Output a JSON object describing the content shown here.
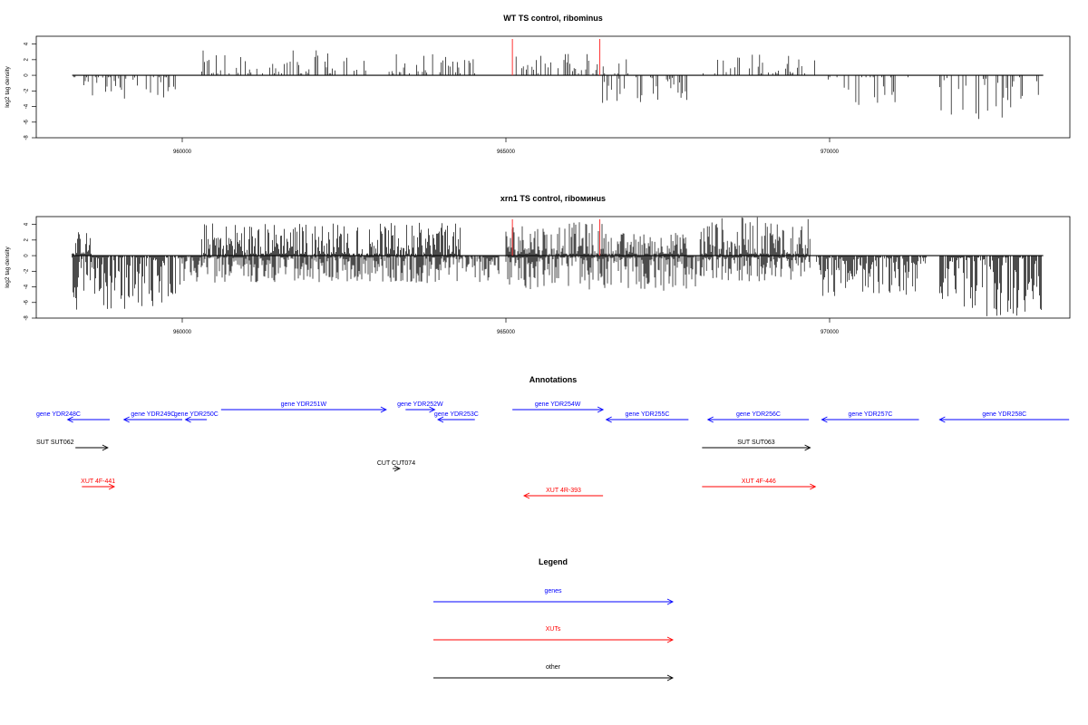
{
  "chart_data": [
    {
      "type": "bar",
      "title": "WT TS control, ribominus",
      "ylabel": "log2 tag density",
      "xlabel": "",
      "xlim": [
        958300,
        973300
      ],
      "ylim": [
        -8,
        5
      ],
      "x_ticks": [
        "960000",
        "965000",
        "970000"
      ],
      "y_ticks": [
        "4",
        "2",
        "0",
        "-2",
        "-4",
        "-6",
        "-8"
      ],
      "grid": false,
      "highlight_positions": [
        965100,
        966450
      ],
      "highlight_color": "#ff3333",
      "bar_color": "#000000",
      "forward_strand_regions": [
        {
          "start": 960300,
          "end": 962850,
          "max": 3.2
        },
        {
          "start": 963150,
          "end": 964550,
          "max": 2.8
        },
        {
          "start": 965000,
          "end": 966900,
          "max": 2.8
        },
        {
          "start": 968000,
          "end": 969800,
          "max": 2.8
        }
      ],
      "reverse_strand_regions": [
        {
          "start": 958300,
          "end": 959900,
          "max": 3.0
        },
        {
          "start": 966450,
          "end": 967800,
          "max": 3.8
        },
        {
          "start": 969800,
          "end": 971300,
          "max": 4.2
        },
        {
          "start": 971700,
          "end": 973300,
          "max": 5.8
        }
      ]
    },
    {
      "type": "bar",
      "title": "xrn1 TS control, riboминus",
      "ylabel": "log2 tag density",
      "xlabel": "",
      "xlim": [
        958300,
        973300
      ],
      "ylim": [
        -8,
        5
      ],
      "x_ticks": [
        "960000",
        "965000",
        "970000"
      ],
      "y_ticks": [
        "4",
        "2",
        "0",
        "-2",
        "-4",
        "-6",
        "-8"
      ],
      "grid": false,
      "highlight_positions": [
        965100,
        966450
      ],
      "highlight_color": "#ff3333",
      "bar_color": "#000000",
      "forward_strand_regions": [
        {
          "start": 958300,
          "end": 958600,
          "max": 3.2
        },
        {
          "start": 960300,
          "end": 962800,
          "max": 4.3
        },
        {
          "start": 962850,
          "end": 964300,
          "max": 4.2
        },
        {
          "start": 965000,
          "end": 966500,
          "max": 4.3
        },
        {
          "start": 966500,
          "end": 967800,
          "max": 3.0
        },
        {
          "start": 968000,
          "end": 969700,
          "max": 5.0
        }
      ],
      "reverse_strand_regions": [
        {
          "start": 958300,
          "end": 960000,
          "max": 7.0
        },
        {
          "start": 960000,
          "end": 962900,
          "max": 3.5
        },
        {
          "start": 962900,
          "end": 964900,
          "max": 3.5
        },
        {
          "start": 965000,
          "end": 968000,
          "max": 4.5
        },
        {
          "start": 968000,
          "end": 969700,
          "max": 3.3
        },
        {
          "start": 969800,
          "end": 971500,
          "max": 5.2
        },
        {
          "start": 971700,
          "end": 973300,
          "max": 7.8
        }
      ]
    }
  ],
  "annotations": {
    "title": "Annotations",
    "features": [
      {
        "label": "gene YDR248C",
        "start": 958230,
        "end": 958880,
        "strand": "-",
        "type": "gene",
        "row": 1
      },
      {
        "label": "gene YDR249C",
        "start": 959100,
        "end": 960000,
        "strand": "-",
        "type": "gene",
        "row": 1
      },
      {
        "label": "gene YDR250C",
        "start": 960050,
        "end": 960380,
        "strand": "-",
        "type": "gene",
        "row": 1
      },
      {
        "label": "gene YDR251W",
        "start": 960600,
        "end": 963150,
        "strand": "+",
        "type": "gene",
        "row": 0
      },
      {
        "label": "gene YDR252W",
        "start": 963450,
        "end": 963900,
        "strand": "+",
        "type": "gene",
        "row": 0
      },
      {
        "label": "gene YDR253C",
        "start": 963950,
        "end": 964520,
        "strand": "-",
        "type": "gene",
        "row": 1
      },
      {
        "label": "gene YDR254W",
        "start": 965100,
        "end": 966500,
        "strand": "+",
        "type": "gene",
        "row": 0
      },
      {
        "label": "gene YDR255C",
        "start": 966550,
        "end": 967820,
        "strand": "-",
        "type": "gene",
        "row": 1
      },
      {
        "label": "gene YDR256C",
        "start": 968120,
        "end": 969680,
        "strand": "-",
        "type": "gene",
        "row": 1
      },
      {
        "label": "gene YDR257C",
        "start": 969880,
        "end": 971380,
        "strand": "-",
        "type": "gene",
        "row": 1
      },
      {
        "label": "gene YDR258C",
        "start": 971700,
        "end": 973700,
        "strand": "-",
        "type": "gene",
        "row": 1
      },
      {
        "label": "SUT SUT062",
        "start": 958350,
        "end": 958850,
        "strand": "+",
        "type": "other",
        "row": 2
      },
      {
        "label": "SUT SUT063",
        "start": 968030,
        "end": 969700,
        "strand": "+",
        "type": "other",
        "row": 2
      },
      {
        "label": "CUT CUT074",
        "start": 963250,
        "end": 963360,
        "strand": "+",
        "type": "other",
        "row": 3
      },
      {
        "label": "XUT 4F-441",
        "start": 958450,
        "end": 958950,
        "strand": "+",
        "type": "xut",
        "row": 4
      },
      {
        "label": "XUT 4R-393",
        "start": 965280,
        "end": 966500,
        "strand": "-",
        "type": "xut",
        "row": 5
      },
      {
        "label": "XUT 4F-446",
        "start": 968030,
        "end": 969780,
        "strand": "+",
        "type": "xut",
        "row": 4
      }
    ]
  },
  "legend": {
    "title": "Legend",
    "items": [
      {
        "label": "genes",
        "color": "#0000ff"
      },
      {
        "label": "XUTs",
        "color": "#ff0000"
      },
      {
        "label": "other",
        "color": "#000000"
      }
    ]
  },
  "colors": {
    "gene": "#0000ff",
    "xut": "#ff0000",
    "other": "#000000"
  }
}
